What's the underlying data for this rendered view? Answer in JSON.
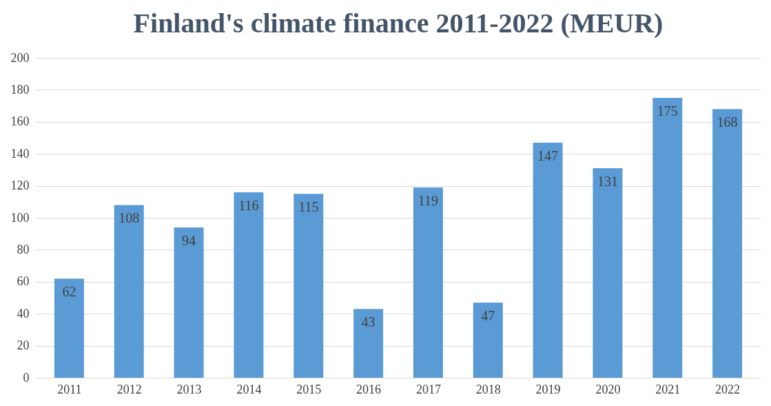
{
  "chart_data": {
    "type": "bar",
    "title": "Finland's climate finance 2011-2022 (MEUR)",
    "categories": [
      "2011",
      "2012",
      "2013",
      "2014",
      "2015",
      "2016",
      "2017",
      "2018",
      "2019",
      "2020",
      "2021",
      "2022"
    ],
    "values": [
      62,
      108,
      94,
      116,
      115,
      43,
      119,
      47,
      147,
      131,
      175,
      168
    ],
    "color": "#5b9bd5",
    "ylim": [
      0,
      200
    ],
    "yticks": [
      0,
      20,
      40,
      60,
      80,
      100,
      120,
      140,
      160,
      180,
      200
    ],
    "grid": "y",
    "data_labels": true
  }
}
